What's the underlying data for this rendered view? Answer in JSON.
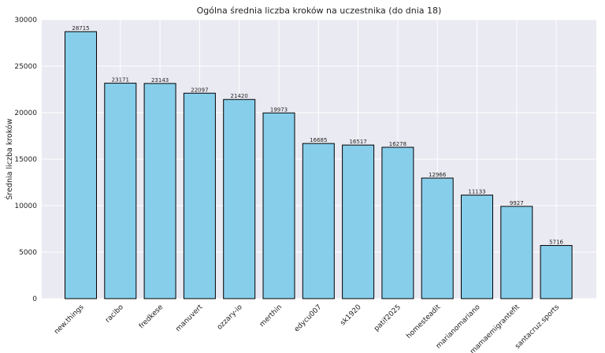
{
  "chart_data": {
    "type": "bar",
    "title": "Ogólna średnia liczba kroków na uczestnika (do dnia 18)",
    "xlabel": "",
    "ylabel": "Średnia liczba kroków",
    "categories": [
      "new.things",
      "racibo",
      "fredkese",
      "manuvert",
      "ozzary-io",
      "merthin",
      "edycu007",
      "sk1920",
      "patif2025",
      "homesteadit",
      "marianomariano",
      "mamaemigrantefit",
      "santacruz.sports"
    ],
    "values": [
      28715,
      23171,
      23143,
      22097,
      21420,
      19973,
      16685,
      16517,
      16278,
      12966,
      11133,
      9927,
      5716
    ],
    "ylim": [
      0,
      30000
    ],
    "yticks": [
      0,
      5000,
      10000,
      15000,
      20000,
      25000,
      30000
    ],
    "grid": true,
    "colors": {
      "background": "#eaeaf2",
      "bar_fill": "#87ceeb",
      "bar_edge": "#000000",
      "grid": "#ffffff"
    }
  }
}
